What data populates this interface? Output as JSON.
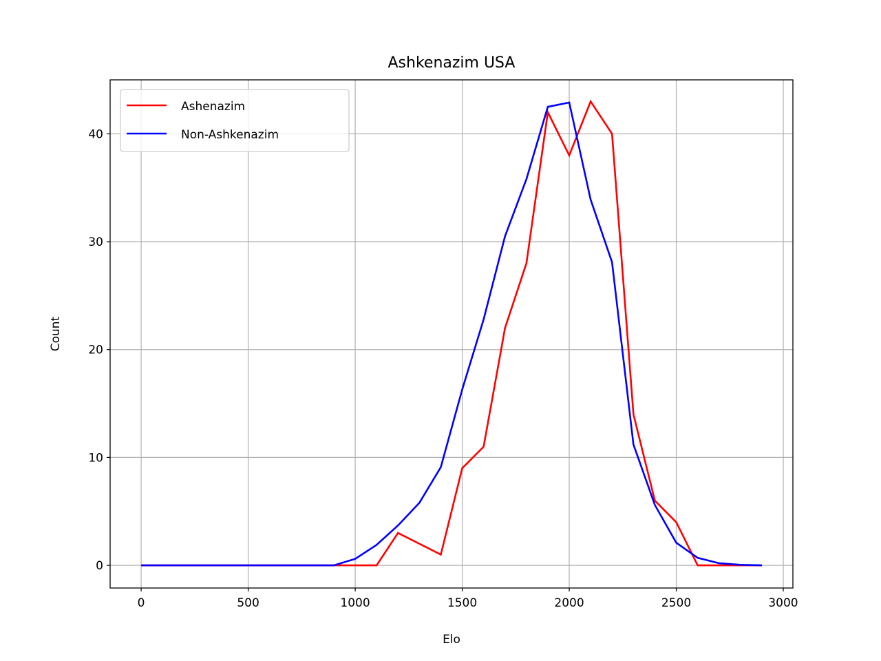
{
  "chart_data": {
    "type": "line",
    "title": "Ashkenazim USA",
    "xlabel": "Elo",
    "ylabel": "Count",
    "xlim": [
      -145,
      3045
    ],
    "ylim": [
      -2.1,
      45
    ],
    "xticks": [
      0,
      500,
      1000,
      1500,
      2000,
      2500,
      3000
    ],
    "yticks": [
      0,
      10,
      20,
      30,
      40
    ],
    "grid": true,
    "legend_position": "top-left",
    "x": [
      0,
      100,
      200,
      300,
      400,
      500,
      600,
      700,
      800,
      900,
      1000,
      1100,
      1200,
      1300,
      1400,
      1500,
      1600,
      1700,
      1800,
      1900,
      2000,
      2100,
      2200,
      2300,
      2400,
      2500,
      2600,
      2700,
      2800,
      2900
    ],
    "series": [
      {
        "name": "Ashenazim",
        "color": "#ff0000",
        "values": [
          0,
          0,
          0,
          0,
          0,
          0,
          0,
          0,
          0,
          0,
          0,
          0,
          3,
          2,
          1,
          9,
          11,
          22,
          28,
          42,
          38,
          43,
          40,
          14,
          6,
          4,
          0,
          0,
          0,
          0
        ]
      },
      {
        "name": "Non-Ashkenazim",
        "color": "#0000ff",
        "values": [
          0,
          0,
          0,
          0,
          0,
          0,
          0,
          0,
          0,
          0,
          0.6,
          1.9,
          3.7,
          5.8,
          9.1,
          16.3,
          22.8,
          30.5,
          35.8,
          42.5,
          42.9,
          33.9,
          28.1,
          11.2,
          5.6,
          2.1,
          0.7,
          0.2,
          0.05,
          0
        ]
      }
    ]
  }
}
